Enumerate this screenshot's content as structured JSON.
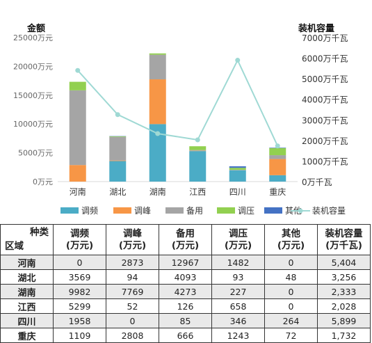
{
  "chart_data": {
    "type": "bar",
    "stacked": true,
    "categories": [
      "河南",
      "湖北",
      "湖南",
      "江西",
      "四川",
      "重庆"
    ],
    "left_axis": {
      "label": "金额",
      "ylim": [
        0,
        25000
      ],
      "step": 5000,
      "unit": "万元",
      "ticks": [
        "0万元",
        "5000万元",
        "10000万元",
        "15000万元",
        "20000万元",
        "25000万元"
      ]
    },
    "right_axis": {
      "label": "装机容量",
      "ylim": [
        0,
        7000
      ],
      "step": 1000,
      "unit": "万千瓦",
      "ticks": [
        "0万千瓦",
        "1000万千瓦",
        "2000万千瓦",
        "3000万千瓦",
        "4000万千瓦",
        "5000万千瓦",
        "6000万千瓦",
        "7000万千瓦"
      ]
    },
    "series": [
      {
        "name": "调频",
        "type": "bar",
        "axis": "left",
        "color": "#4bacc6",
        "values": [
          0,
          3569,
          9982,
          5299,
          1958,
          1109
        ]
      },
      {
        "name": "调峰",
        "type": "bar",
        "axis": "left",
        "color": "#f79646",
        "values": [
          2873,
          94,
          7769,
          52,
          0,
          2808
        ]
      },
      {
        "name": "备用",
        "type": "bar",
        "axis": "left",
        "color": "#a5a5a5",
        "values": [
          12967,
          4093,
          4273,
          126,
          85,
          666
        ]
      },
      {
        "name": "调压",
        "type": "bar",
        "axis": "left",
        "color": "#92d050",
        "values": [
          1482,
          93,
          227,
          658,
          346,
          1243
        ]
      },
      {
        "name": "其他",
        "type": "bar",
        "axis": "left",
        "color": "#4472c4",
        "values": [
          0,
          48,
          0,
          0,
          264,
          72
        ]
      },
      {
        "name": "装机容量",
        "type": "line",
        "axis": "right",
        "color": "#9fd9d4",
        "values": [
          5404,
          3256,
          2333,
          2028,
          5899,
          1732
        ]
      }
    ],
    "legend_position": "bottom",
    "grid": false
  },
  "table": {
    "corner_top": "种类",
    "corner_bottom": "区域",
    "columns": [
      {
        "name": "调频",
        "unit": "(万元)"
      },
      {
        "name": "调峰",
        "unit": "(万元)"
      },
      {
        "name": "备用",
        "unit": "(万元)"
      },
      {
        "name": "调压",
        "unit": "(万元)"
      },
      {
        "name": "其他",
        "unit": "(万元)"
      },
      {
        "name": "装机容量",
        "unit": "(万千瓦)"
      }
    ],
    "rows": [
      {
        "region": "河南",
        "cells": [
          "0",
          "2873",
          "12967",
          "1482",
          "0",
          "5,404"
        ]
      },
      {
        "region": "湖北",
        "cells": [
          "3569",
          "94",
          "4093",
          "93",
          "48",
          "3,256"
        ]
      },
      {
        "region": "湖南",
        "cells": [
          "9982",
          "7769",
          "4273",
          "227",
          "0",
          "2,333"
        ]
      },
      {
        "region": "江西",
        "cells": [
          "5299",
          "52",
          "126",
          "658",
          "0",
          "2,028"
        ]
      },
      {
        "region": "四川",
        "cells": [
          "1958",
          "0",
          "85",
          "346",
          "264",
          "5,899"
        ]
      },
      {
        "region": "重庆",
        "cells": [
          "1109",
          "2808",
          "666",
          "1243",
          "72",
          "1,732"
        ]
      }
    ]
  }
}
